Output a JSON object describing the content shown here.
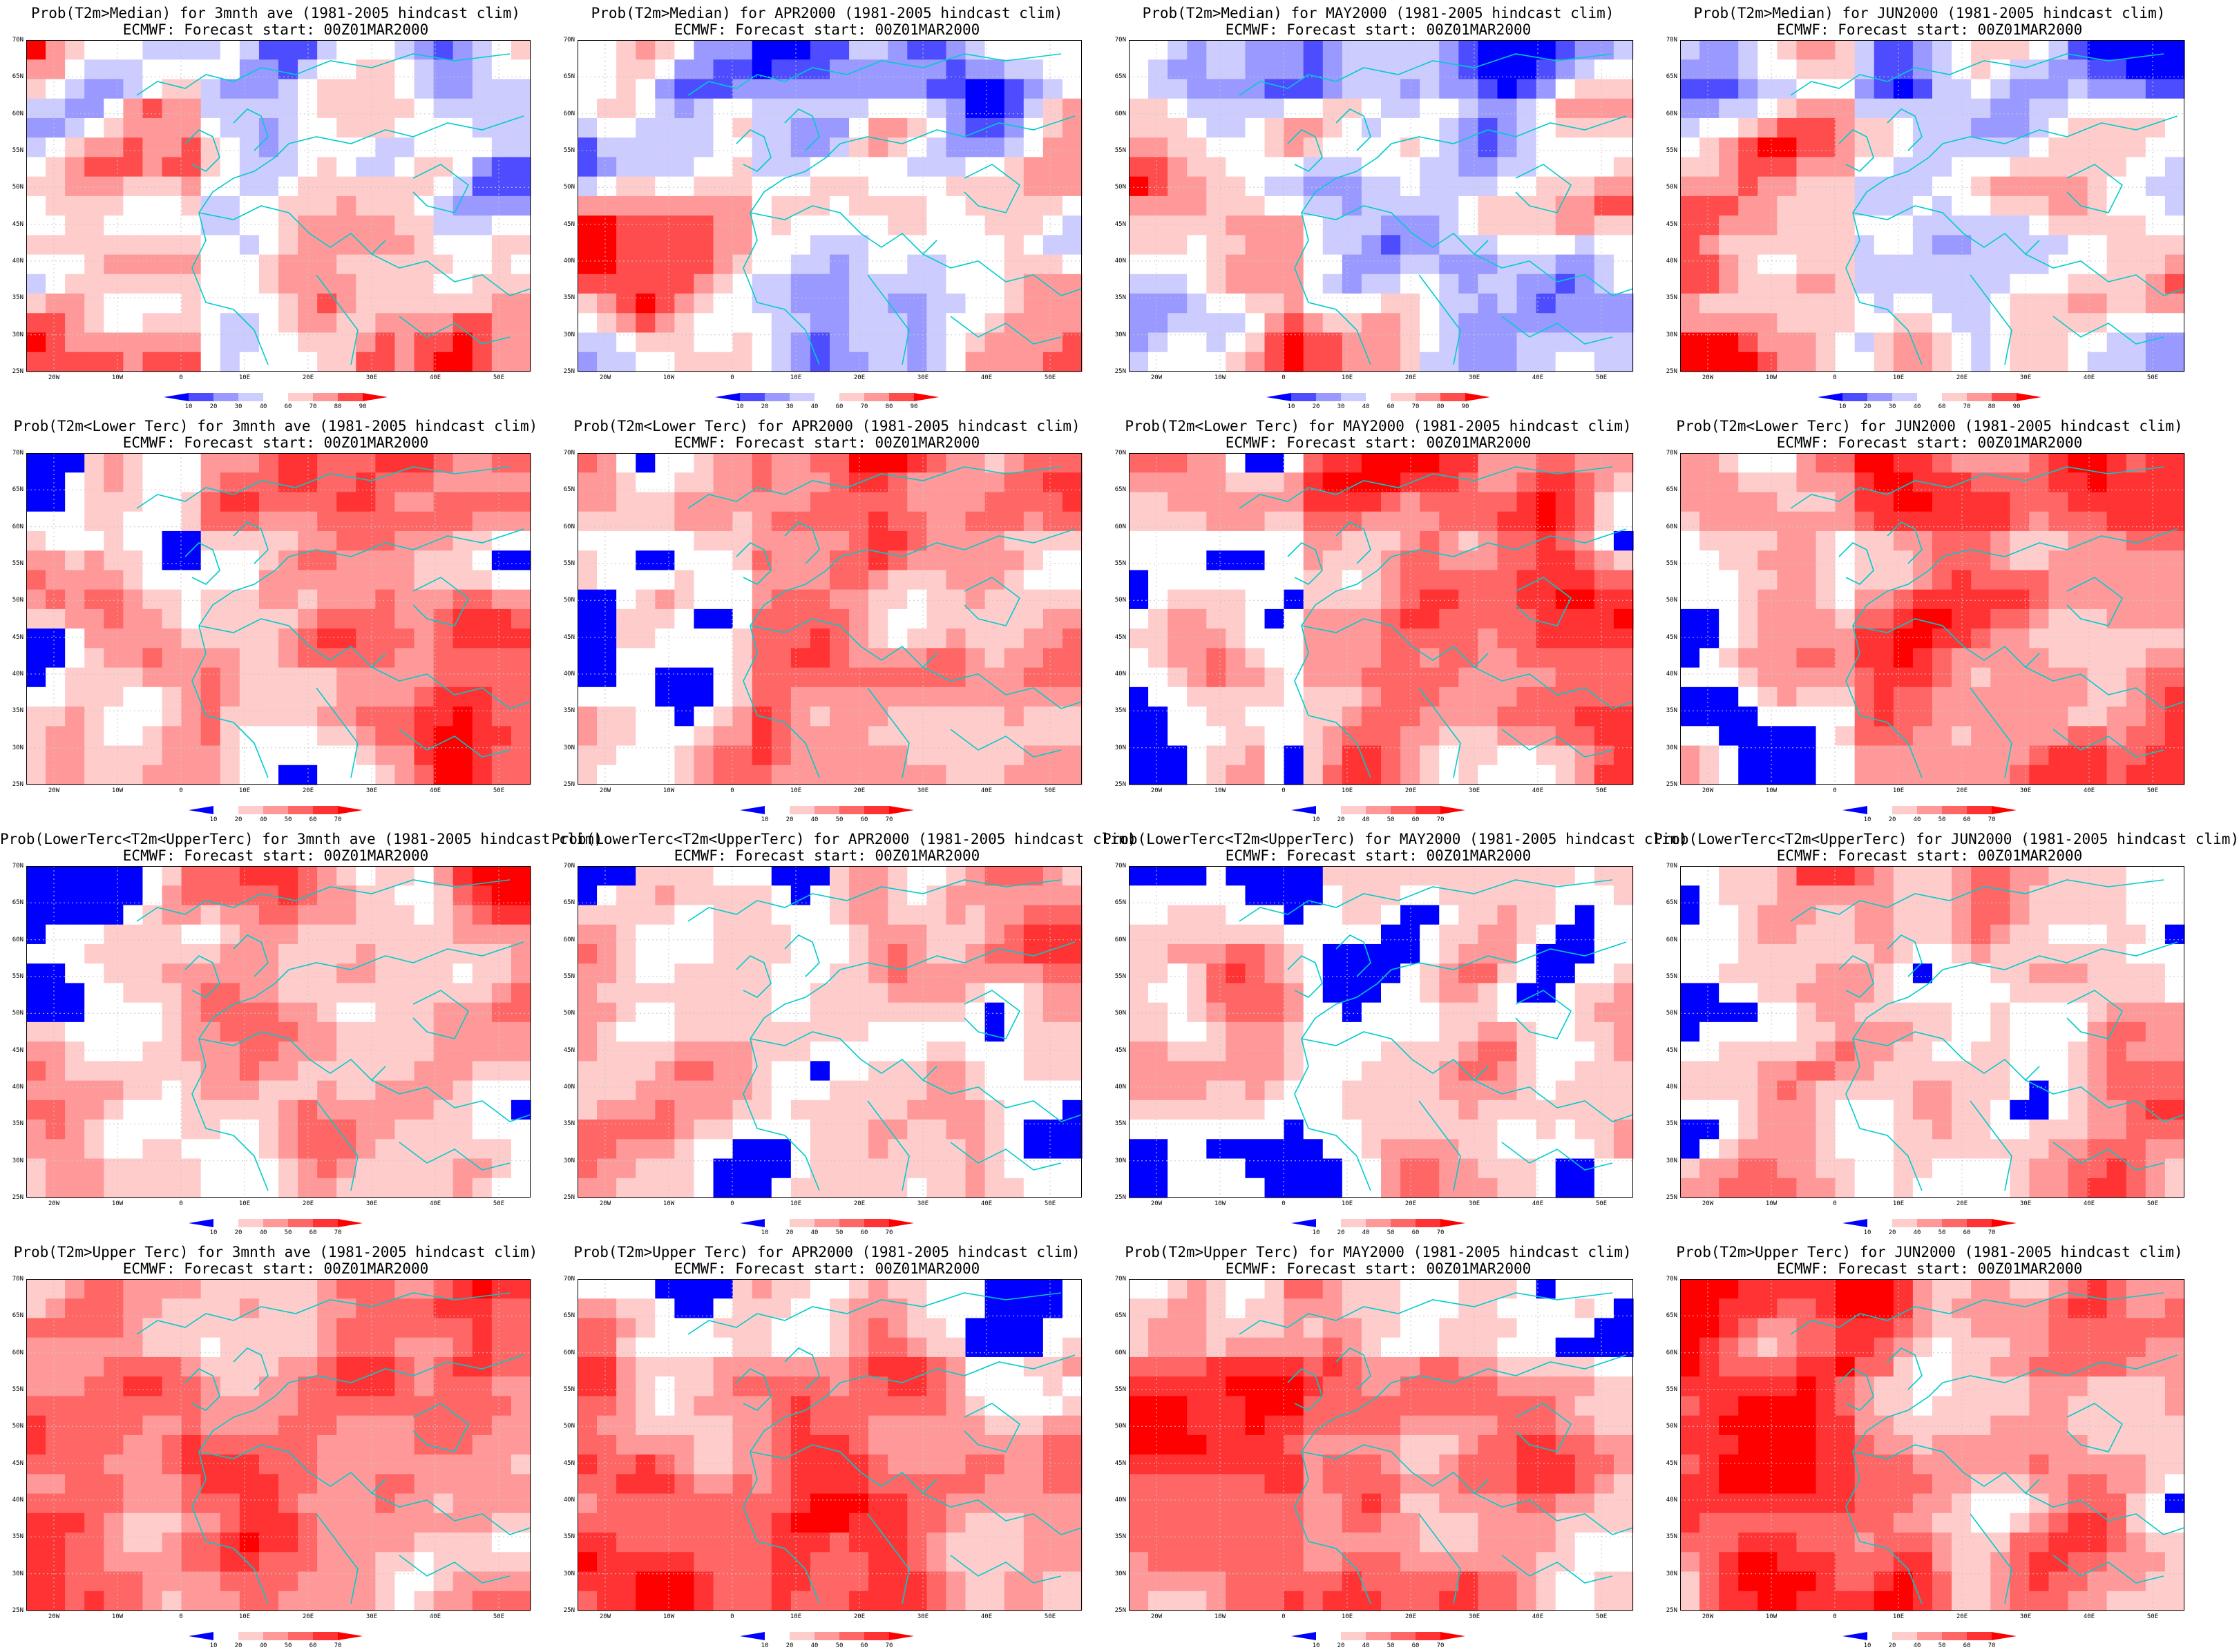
{
  "rows": [
    {
      "key": "median",
      "palette": "median",
      "cbar_ticks": [
        "10",
        "20",
        "30",
        "40",
        "60",
        "70",
        "80",
        "90"
      ],
      "titles": [
        "Prob(T2m>Median) for 3mnth ave (1981-2005 hindcast clim)",
        "Prob(T2m>Median) for APR2000 (1981-2005 hindcast clim)",
        "Prob(T2m>Median) for MAY2000 (1981-2005 hindcast clim)",
        "Prob(T2m>Median) for JUN2000 (1981-2005 hindcast clim)"
      ]
    },
    {
      "key": "lower",
      "palette": "tercile",
      "cbar_ticks": [
        "10",
        "20",
        "40",
        "50",
        "60",
        "70"
      ],
      "titles": [
        "Prob(T2m<Lower Terc) for 3mnth ave (1981-2005 hindcast clim)",
        "Prob(T2m<Lower Terc) for APR2000 (1981-2005 hindcast clim)",
        "Prob(T2m<Lower Terc) for MAY2000 (1981-2005 hindcast clim)",
        "Prob(T2m<Lower Terc) for JUN2000 (1981-2005 hindcast clim)"
      ]
    },
    {
      "key": "middle",
      "palette": "tercile",
      "cbar_ticks": [
        "10",
        "20",
        "40",
        "50",
        "60",
        "70"
      ],
      "titles": [
        "Prob(LowerTerc<T2m<UpperTerc) for 3mnth ave (1981-2005 hindcast clim)",
        "Prob(LowerTerc<T2m<UpperTerc) for APR2000 (1981-2005 hindcast clim)",
        "Prob(LowerTerc<T2m<UpperTerc) for MAY2000 (1981-2005 hindcast clim)",
        "Prob(LowerTerc<T2m<UpperTerc) for JUN2000 (1981-2005 hindcast clim)"
      ]
    },
    {
      "key": "upper",
      "palette": "tercile",
      "cbar_ticks": [
        "10",
        "20",
        "40",
        "50",
        "60",
        "70"
      ],
      "titles": [
        "Prob(T2m>Upper Terc) for 3mnth ave (1981-2005 hindcast clim)",
        "Prob(T2m>Upper Terc) for APR2000 (1981-2005 hindcast clim)",
        "Prob(T2m>Upper Terc) for MAY2000 (1981-2005 hindcast clim)",
        "Prob(T2m>Upper Terc) for JUN2000 (1981-2005 hindcast clim)"
      ]
    }
  ],
  "subtitle": "ECMWF: Forecast start: 00Z01MAR2000",
  "lat_labels": [
    "70N",
    "65N",
    "60N",
    "55N",
    "50N",
    "45N",
    "40N",
    "35N",
    "30N",
    "25N"
  ],
  "lon_labels": [
    "20W",
    "10W",
    "0",
    "10E",
    "20E",
    "30E",
    "40E",
    "50E"
  ],
  "palettes": {
    "median": [
      "#0000ff",
      "#4d4dff",
      "#9999ff",
      "#ccccff",
      "#ffffff",
      "#ffcccc",
      "#ff9999",
      "#ff4d4d",
      "#ff0000"
    ],
    "tercile": [
      "#0000ff",
      "#ffffff",
      "#ffcccc",
      "#ff9999",
      "#ff6666",
      "#ff3333",
      "#ff0000"
    ]
  },
  "colors": {
    "coastline": "#00cccc",
    "gridline": "#c8c8c8"
  }
}
